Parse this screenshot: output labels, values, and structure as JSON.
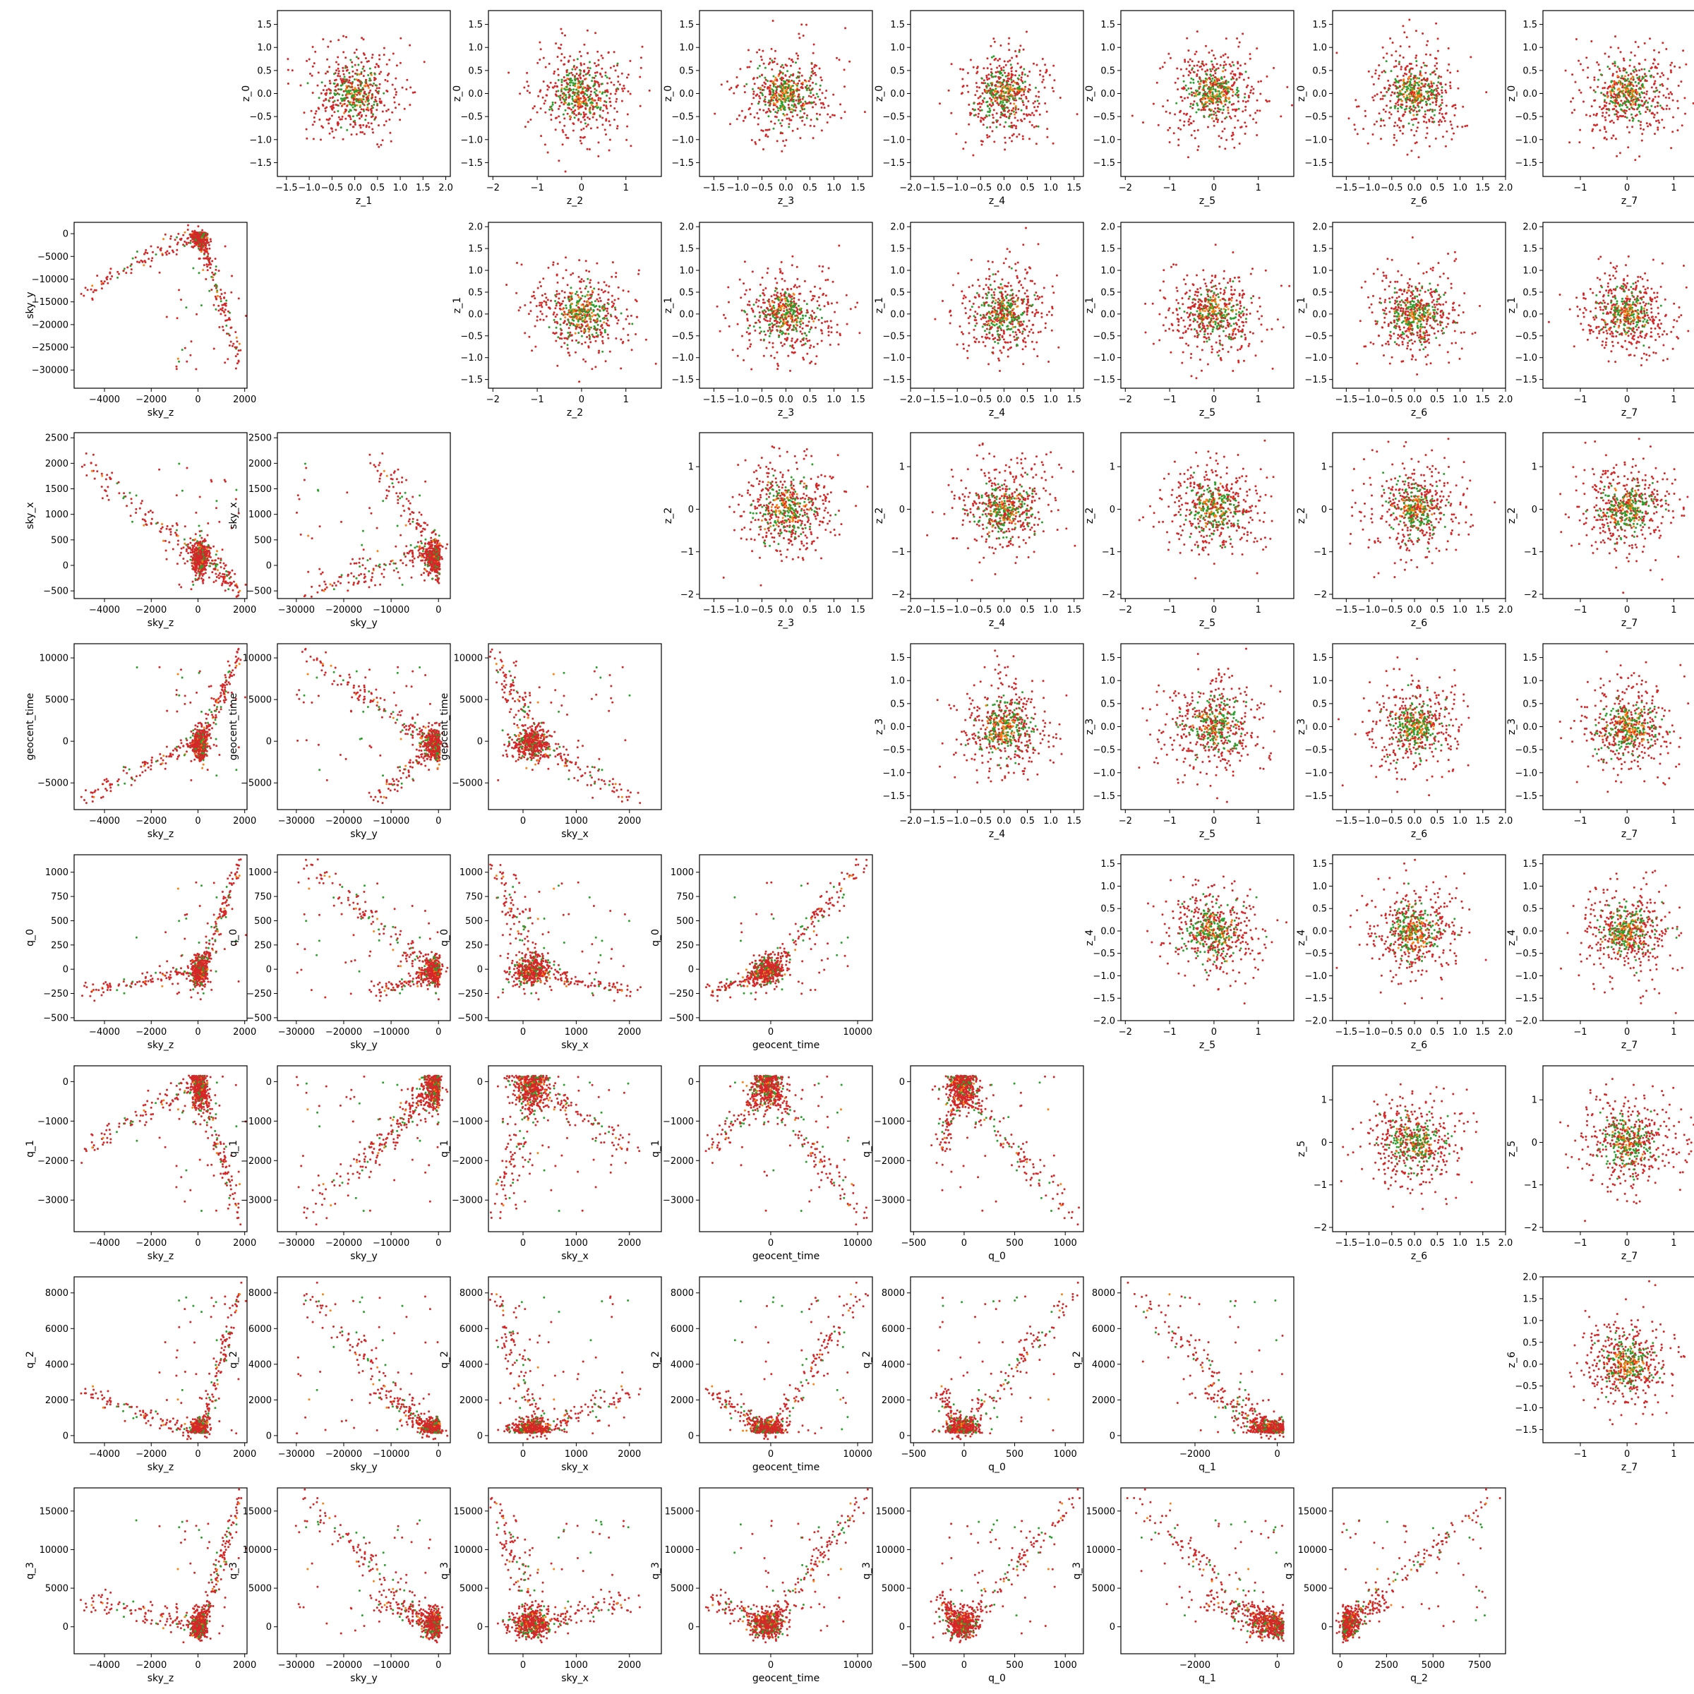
{
  "figure": {
    "kind": "pair-plot",
    "layout": "lower triangle: embedding / data dimensions, upper triangle: latent z dimensions",
    "colors": {
      "primary": "#d62728",
      "secondary": "#2ca02c",
      "tertiary": "#ff7f0e"
    }
  },
  "chart_data": {
    "type": "scatter",
    "upper_rows": [
      "z_0",
      "z_1",
      "z_2",
      "z_3",
      "z_4",
      "z_5",
      "z_6"
    ],
    "upper_cols": [
      "z_1",
      "z_2",
      "z_3",
      "z_4",
      "z_5",
      "z_6",
      "z_7"
    ],
    "lower_rows": [
      "sky_y",
      "sky_x",
      "geocent_time",
      "q_0",
      "q_1",
      "q_2",
      "q_3"
    ],
    "lower_cols": [
      "sky_z",
      "sky_y",
      "sky_x",
      "geocent_time",
      "q_0",
      "q_1",
      "q_2"
    ],
    "series": [
      {
        "color": "#d62728",
        "role": "red points"
      },
      {
        "color": "#2ca02c",
        "role": "green points"
      },
      {
        "color": "#ff7f0e",
        "role": "orange points"
      }
    ],
    "axes": {
      "z_0": {
        "lim": [
          -1.8,
          1.8
        ],
        "ticks": [
          -1.5,
          -1.0,
          -0.5,
          0.0,
          0.5,
          1.0,
          1.5
        ],
        "fmt": 1,
        "center": 0,
        "spread": 0.5
      },
      "z_1": {
        "lim": [
          -1.7,
          2.1
        ],
        "ticks": [
          -1.5,
          -1.0,
          -0.5,
          0.0,
          0.5,
          1.0,
          1.5,
          2.0
        ],
        "fmt": 1,
        "center": 0,
        "spread": 0.5
      },
      "z_2": {
        "lim": [
          -2.1,
          1.8
        ],
        "ticks": [
          -2,
          -1,
          0,
          1
        ],
        "fmt": 0,
        "center": 0,
        "spread": 0.55
      },
      "z_3": {
        "lim": [
          -1.8,
          1.8
        ],
        "ticks": [
          -1.5,
          -1.0,
          -0.5,
          0.0,
          0.5,
          1.0,
          1.5
        ],
        "fmt": 1,
        "center": 0,
        "spread": 0.5
      },
      "z_4": {
        "lim": [
          -2.0,
          1.7
        ],
        "ticks": [
          -2.0,
          -1.5,
          -1.0,
          -0.5,
          0.0,
          0.5,
          1.0,
          1.5
        ],
        "fmt": 1,
        "center": 0,
        "spread": 0.5
      },
      "z_5": {
        "lim": [
          -2.1,
          1.8
        ],
        "ticks": [
          -2,
          -1,
          0,
          1
        ],
        "fmt": 0,
        "center": 0,
        "spread": 0.55
      },
      "z_6": {
        "lim": [
          -1.8,
          2.0
        ],
        "ticks": [
          -1.5,
          -1.0,
          -0.5,
          0.0,
          0.5,
          1.0,
          1.5,
          2.0
        ],
        "fmt": 1,
        "center": 0,
        "spread": 0.5
      },
      "z_7": {
        "lim": [
          -1.8,
          1.9
        ],
        "ticks": [
          -1,
          0,
          1
        ],
        "fmt": 0,
        "center": 0,
        "spread": 0.5
      },
      "sky_z": {
        "lim": [
          -5300,
          2100
        ],
        "ticks": [
          -4000,
          -2000,
          0,
          2000
        ],
        "fmt": 0
      },
      "sky_y": {
        "lim": [
          -34000,
          2500
        ],
        "ticks": [
          -30000,
          -25000,
          -20000,
          -15000,
          -10000,
          -5000,
          0
        ],
        "xticks": [
          -30000,
          -20000,
          -10000,
          0
        ],
        "fmt": 0
      },
      "sky_x": {
        "lim": [
          -650,
          2600
        ],
        "ticks": [
          -500,
          0,
          500,
          1000,
          1500,
          2000,
          2500
        ],
        "xticks": [
          0,
          1000,
          2000
        ],
        "fmt": 0
      },
      "geocent_time": {
        "lim": [
          -8200,
          11700
        ],
        "ticks": [
          -5000,
          0,
          5000,
          10000
        ],
        "xticks": [
          0,
          10000
        ],
        "fmt": 0
      },
      "q_0": {
        "lim": [
          -530,
          1180
        ],
        "ticks": [
          -500,
          -250,
          0,
          250,
          500,
          750,
          1000
        ],
        "xticks": [
          -500,
          0,
          500,
          1000
        ],
        "fmt": 0
      },
      "q_1": {
        "lim": [
          -3800,
          400
        ],
        "ticks": [
          -3000,
          -2000,
          -1000,
          0
        ],
        "xticks": [
          -2000,
          0
        ],
        "fmt": 0
      },
      "q_2": {
        "lim": [
          -400,
          8900
        ],
        "ticks": [
          0,
          2000,
          4000,
          6000,
          8000
        ],
        "xticks": [
          0,
          2500,
          5000,
          7500
        ],
        "fmt": 0
      },
      "q_3": {
        "lim": [
          -3500,
          18000
        ],
        "ticks": [
          0,
          5000,
          10000,
          15000
        ],
        "fmt": 0
      }
    }
  }
}
